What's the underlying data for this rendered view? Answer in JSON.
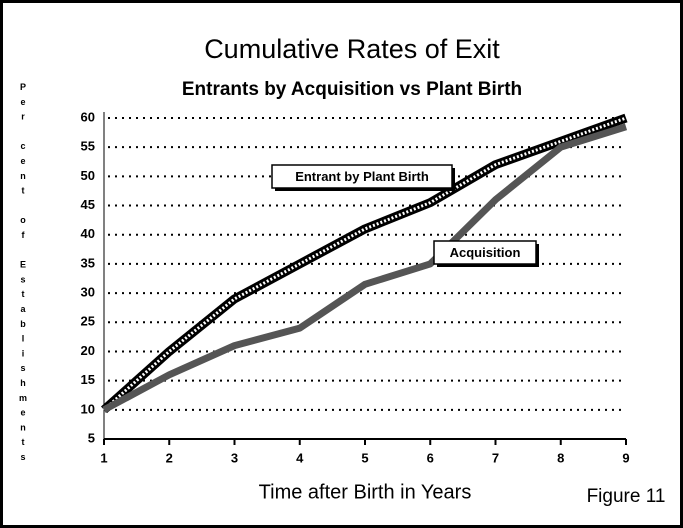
{
  "chart_data": {
    "type": "line",
    "title": "Cumulative Rates of Exit",
    "subtitle": "Entrants by Acquisition vs Plant Birth",
    "ylabel": "Per cent of Establishments",
    "xlabel": "Time after Birth in Years",
    "annotation": "Figure 11",
    "x": [
      1,
      2,
      3,
      4,
      5,
      6,
      7,
      8,
      9
    ],
    "series": [
      {
        "name": "Entrant by Plant Birth",
        "color": "#000000",
        "values": [
          10,
          20,
          29,
          35,
          41,
          45.5,
          52,
          56,
          60
        ]
      },
      {
        "name": "Acquisition",
        "color": "#555555",
        "values": [
          10,
          16,
          21,
          24,
          31.5,
          35,
          46,
          55,
          58.5
        ]
      }
    ],
    "xlim": [
      1,
      9
    ],
    "xticks": [
      1,
      2,
      3,
      4,
      5,
      6,
      7,
      8,
      9
    ],
    "ylim": [
      5,
      60
    ],
    "yticks": [
      5,
      10,
      15,
      20,
      25,
      30,
      35,
      40,
      45,
      50,
      55,
      60
    ],
    "grid": true
  }
}
